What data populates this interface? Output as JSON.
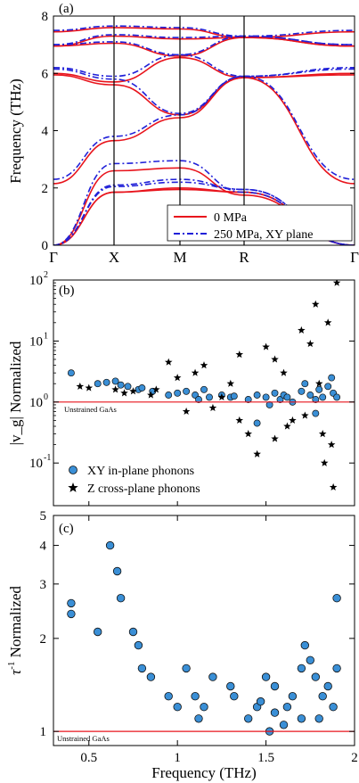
{
  "chart_data": [
    {
      "type": "line",
      "panel_label": "(a)",
      "ylabel": "Frequency (THz)",
      "ylim": [
        0,
        8
      ],
      "yticks": [
        "0",
        "2",
        "4",
        "6",
        "8"
      ],
      "x_points": [
        "Γ",
        "X",
        "M",
        "R",
        "Γ"
      ],
      "legend": {
        "position": "bottom-right",
        "entries": [
          "0 MPa",
          "250 MPa, XY plane"
        ]
      },
      "colors": {
        "unstrained": "#e8141c",
        "strained": "#2020d8"
      },
      "series": [
        {
          "name": "0 MPa",
          "bands": [
            [
              0,
              1.85,
              1.95,
              1.85,
              0
            ],
            [
              0,
              1.85,
              2.0,
              1.85,
              0
            ],
            [
              0,
              2.6,
              2.7,
              1.75,
              0
            ],
            [
              2.15,
              3.65,
              4.45,
              5.85,
              2.15
            ],
            [
              5.95,
              5.6,
              4.55,
              5.85,
              5.95
            ],
            [
              6.0,
              5.7,
              6.55,
              5.85,
              6.0
            ],
            [
              6.95,
              7.05,
              6.6,
              7.25,
              6.95
            ],
            [
              6.95,
              7.3,
              7.2,
              7.25,
              6.95
            ],
            [
              7.45,
              7.6,
              7.55,
              7.25,
              7.45
            ]
          ]
        },
        {
          "name": "250 MPa, XY plane",
          "bands": [
            [
              0,
              2.05,
              2.2,
              1.95,
              0
            ],
            [
              0,
              2.1,
              2.3,
              1.95,
              0
            ],
            [
              0,
              2.85,
              2.95,
              1.85,
              0
            ],
            [
              2.3,
              3.8,
              4.55,
              5.9,
              2.3
            ],
            [
              6.15,
              5.8,
              4.6,
              5.9,
              6.15
            ],
            [
              6.2,
              5.9,
              6.65,
              5.9,
              6.2
            ],
            [
              7.0,
              7.1,
              6.65,
              7.3,
              7.0
            ],
            [
              7.0,
              7.35,
              7.25,
              7.3,
              7.0
            ],
            [
              7.5,
              7.65,
              7.6,
              7.3,
              7.5
            ]
          ]
        }
      ]
    },
    {
      "type": "scatter",
      "panel_label": "(b)",
      "ylabel": "|v_g| Normalized",
      "yscale": "log",
      "ylim": [
        0.02,
        100
      ],
      "yticks": [
        0.1,
        1,
        10,
        100
      ],
      "yticklabels": [
        "10",
        "10",
        "10",
        "10"
      ],
      "ytickexp": [
        "-1",
        "0",
        "1",
        "2"
      ],
      "xlim": [
        0.3,
        2.0
      ],
      "reference_line": {
        "value": 1,
        "label": "Unstrained GaAs"
      },
      "legend": {
        "position": "bottom-left",
        "entries": [
          "XY in-plane phonons",
          "Z cross-plane phonons"
        ]
      },
      "series": [
        {
          "name": "XY in-plane phonons",
          "marker": "circle",
          "color": "#3a8fd6",
          "points": [
            [
              0.4,
              3.0
            ],
            [
              0.55,
              2.0
            ],
            [
              0.6,
              2.1
            ],
            [
              0.65,
              2.2
            ],
            [
              0.68,
              1.9
            ],
            [
              0.72,
              1.8
            ],
            [
              0.78,
              1.6
            ],
            [
              0.8,
              1.7
            ],
            [
              0.86,
              1.5
            ],
            [
              0.95,
              1.3
            ],
            [
              1.0,
              1.4
            ],
            [
              1.05,
              1.5
            ],
            [
              1.1,
              1.3
            ],
            [
              1.12,
              1.1
            ],
            [
              1.15,
              1.6
            ],
            [
              1.18,
              1.2
            ],
            [
              1.25,
              1.3
            ],
            [
              1.3,
              1.2
            ],
            [
              1.32,
              1.25
            ],
            [
              1.4,
              1.1
            ],
            [
              1.45,
              1.3
            ],
            [
              1.5,
              1.2
            ],
            [
              1.52,
              0.9
            ],
            [
              1.55,
              1.4
            ],
            [
              1.58,
              1.1
            ],
            [
              1.6,
              1.3
            ],
            [
              1.62,
              1.2
            ],
            [
              1.65,
              1.0
            ],
            [
              1.7,
              1.5
            ],
            [
              1.72,
              2.0
            ],
            [
              1.75,
              1.3
            ],
            [
              1.78,
              1.1
            ],
            [
              1.8,
              1.6
            ],
            [
              1.82,
              1.2
            ],
            [
              1.85,
              1.8
            ],
            [
              1.87,
              2.5
            ],
            [
              1.88,
              1.4
            ],
            [
              1.9,
              1.2
            ],
            [
              1.45,
              0.45
            ],
            [
              1.78,
              0.65
            ]
          ]
        },
        {
          "name": "Z cross-plane phonons",
          "marker": "star",
          "color": "#000000",
          "points": [
            [
              0.45,
              1.8
            ],
            [
              0.5,
              1.7
            ],
            [
              0.65,
              1.6
            ],
            [
              0.7,
              1.4
            ],
            [
              0.75,
              1.5
            ],
            [
              0.85,
              1.3
            ],
            [
              0.88,
              1.6
            ],
            [
              0.95,
              4.5
            ],
            [
              1.0,
              2.5
            ],
            [
              1.05,
              0.7
            ],
            [
              1.1,
              3.0
            ],
            [
              1.15,
              4.0
            ],
            [
              1.2,
              0.8
            ],
            [
              1.3,
              2.0
            ],
            [
              1.35,
              6.0
            ],
            [
              1.4,
              0.3
            ],
            [
              1.45,
              0.14
            ],
            [
              1.5,
              8.0
            ],
            [
              1.55,
              5.0
            ],
            [
              1.6,
              3.0
            ],
            [
              1.62,
              0.4
            ],
            [
              1.7,
              15.0
            ],
            [
              1.72,
              0.6
            ],
            [
              1.75,
              9.0
            ],
            [
              1.8,
              2.0
            ],
            [
              1.82,
              0.3
            ],
            [
              1.85,
              20.0
            ],
            [
              1.87,
              0.2
            ],
            [
              1.9,
              90.0
            ],
            [
              1.88,
              0.04
            ],
            [
              1.65,
              0.5
            ],
            [
              1.55,
              0.25
            ],
            [
              1.35,
              0.5
            ],
            [
              1.25,
              1.2
            ],
            [
              1.78,
              40.0
            ],
            [
              1.83,
              0.1
            ]
          ]
        }
      ]
    },
    {
      "type": "scatter",
      "panel_label": "(c)",
      "ylabel": "τ⁻¹ Normalized",
      "ylabel_base": "τ",
      "ylabel_exp": "-1",
      "ylabel_rest": " Normalized",
      "yscale": "log",
      "ylim": [
        0.9,
        5
      ],
      "yticks": [
        1,
        2,
        3,
        4,
        5
      ],
      "xlabel": "Frequency (THz)",
      "xlim": [
        0.3,
        2.0
      ],
      "xticks": [
        0.5,
        1,
        1.5,
        2
      ],
      "xticklabels": [
        "0.5",
        "1",
        "1.5",
        "2"
      ],
      "reference_line": {
        "value": 1,
        "label": "Unstrained GaAs"
      },
      "series": [
        {
          "name": "",
          "marker": "circle",
          "color": "#3a8fd6",
          "points": [
            [
              0.4,
              2.6
            ],
            [
              0.4,
              2.4
            ],
            [
              0.55,
              2.1
            ],
            [
              0.62,
              4.0
            ],
            [
              0.66,
              3.3
            ],
            [
              0.68,
              2.7
            ],
            [
              0.75,
              2.1
            ],
            [
              0.78,
              1.9
            ],
            [
              0.8,
              1.6
            ],
            [
              0.85,
              1.5
            ],
            [
              0.95,
              1.3
            ],
            [
              1.0,
              1.2
            ],
            [
              1.05,
              1.6
            ],
            [
              1.1,
              1.3
            ],
            [
              1.12,
              1.1
            ],
            [
              1.15,
              1.2
            ],
            [
              1.2,
              1.5
            ],
            [
              1.3,
              1.4
            ],
            [
              1.32,
              1.3
            ],
            [
              1.4,
              1.1
            ],
            [
              1.45,
              1.2
            ],
            [
              1.5,
              1.5
            ],
            [
              1.52,
              1.0
            ],
            [
              1.55,
              1.4
            ],
            [
              1.6,
              1.05
            ],
            [
              1.62,
              1.2
            ],
            [
              1.65,
              1.3
            ],
            [
              1.7,
              1.6
            ],
            [
              1.72,
              1.9
            ],
            [
              1.75,
              1.7
            ],
            [
              1.78,
              1.5
            ],
            [
              1.8,
              1.1
            ],
            [
              1.82,
              1.3
            ],
            [
              1.85,
              1.4
            ],
            [
              1.88,
              1.2
            ],
            [
              1.9,
              2.7
            ],
            [
              1.9,
              1.6
            ],
            [
              1.7,
              1.1
            ],
            [
              1.55,
              1.15
            ],
            [
              1.47,
              1.25
            ]
          ]
        }
      ]
    }
  ]
}
